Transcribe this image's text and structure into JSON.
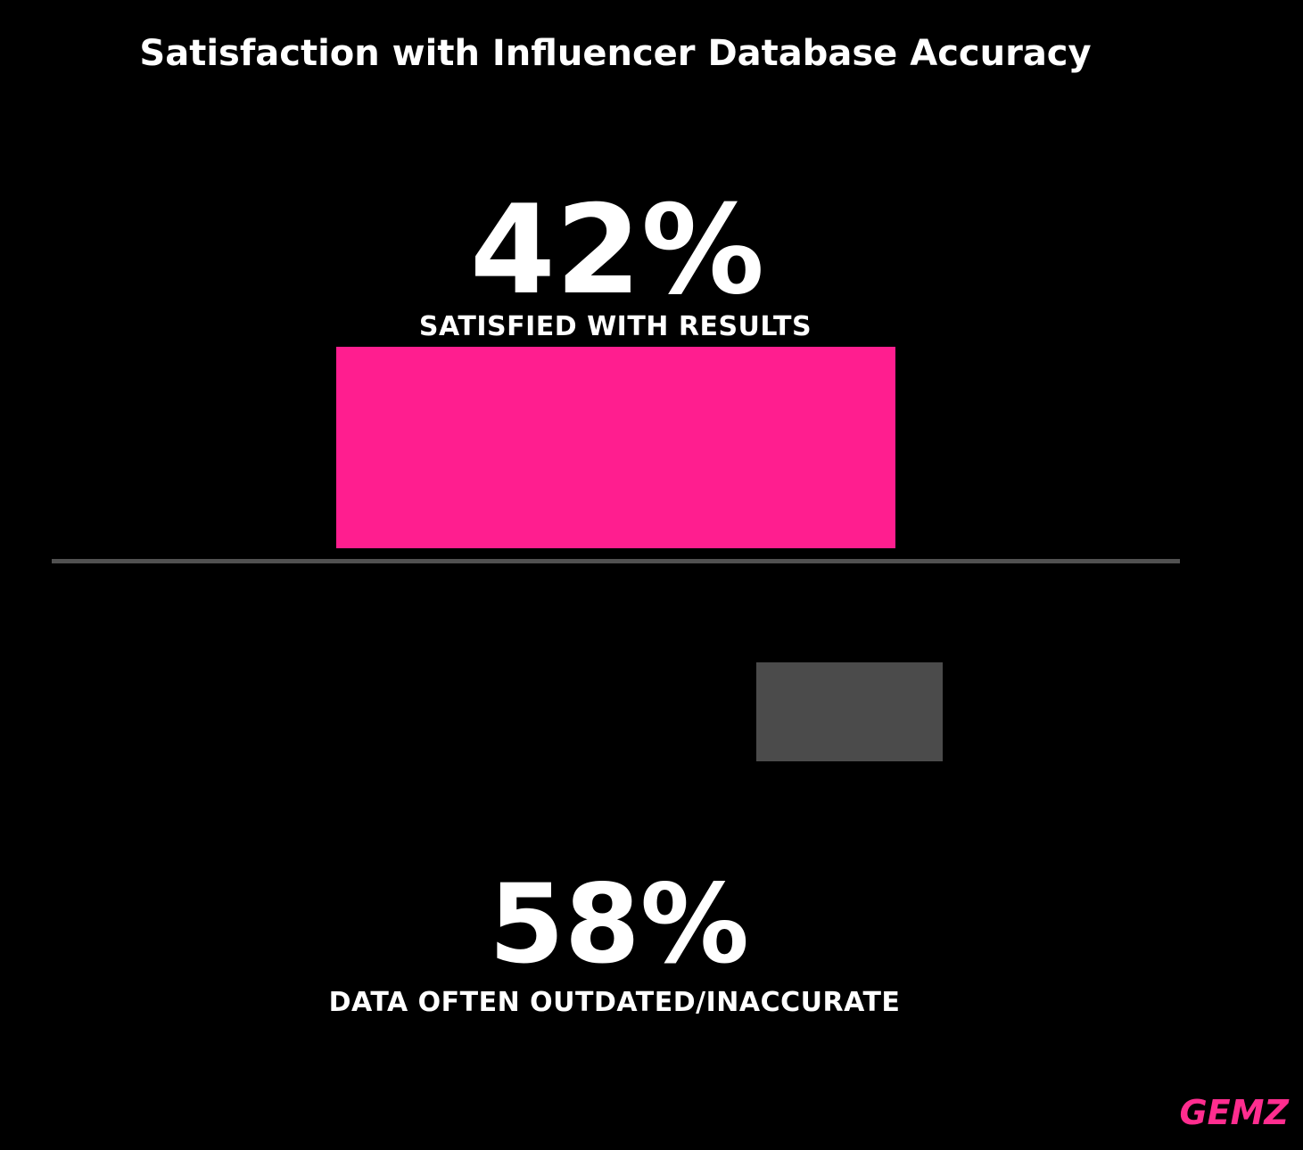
{
  "title": "Satisfaction with Influencer Database Accuracy",
  "brand": "GEMZ",
  "stats": [
    {
      "value": "42%",
      "label": "SATISFIED WITH RESULTS"
    },
    {
      "value": "58%",
      "label": "DATA OFTEN OUTDATED/INACCURATE"
    }
  ],
  "colors": {
    "background": "#000000",
    "text": "#ffffff",
    "accent_pink": "#ff1e8f",
    "muted_gray": "#4b4b4b",
    "divider": "#515151",
    "brand_pink": "#ff2d8f"
  },
  "chart_data": {
    "type": "bar",
    "title": "Satisfaction with Influencer Database Accuracy",
    "categories": [
      "Satisfied with results",
      "Data often outdated/inaccurate"
    ],
    "values": [
      42,
      58
    ],
    "unit": "percent",
    "series_colors": [
      "#ff1e8f",
      "#4b4b4b"
    ],
    "annotations": [
      "42% SATISFIED WITH RESULTS",
      "58% DATA OFTEN OUTDATED/INACCURATE"
    ],
    "legend": "none",
    "grid": false,
    "background": "#000000",
    "watermark": "GEMZ"
  }
}
